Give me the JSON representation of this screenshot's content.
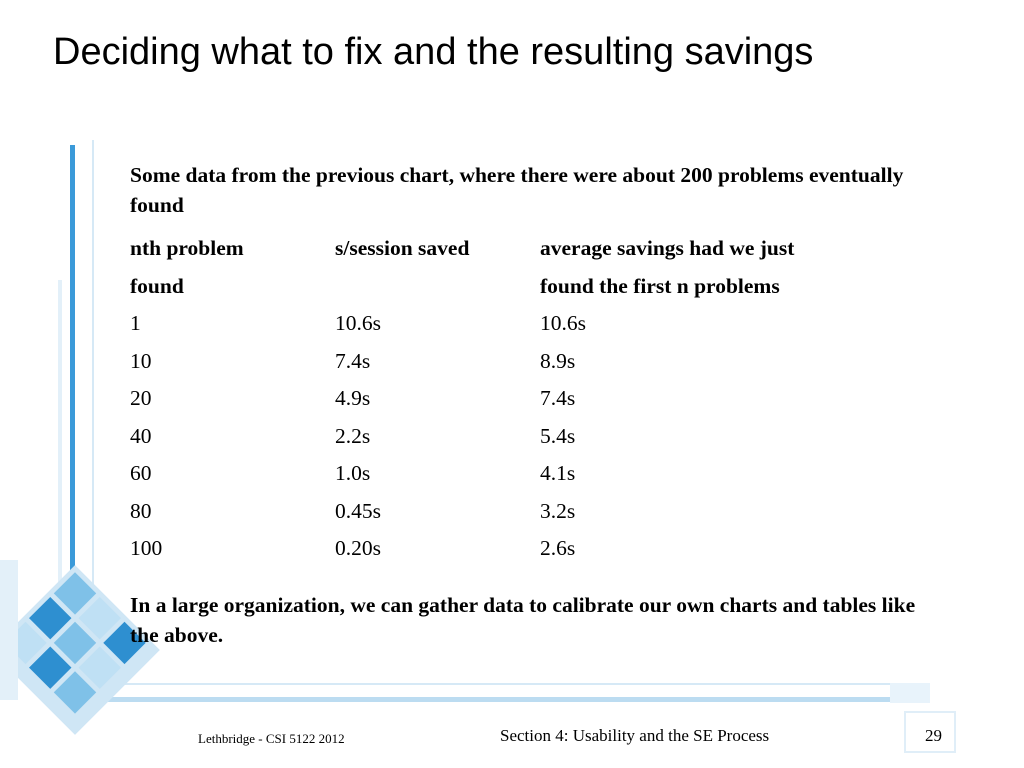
{
  "slide": {
    "title": "Deciding what to fix and the resulting savings",
    "intro": "Some data from the previous chart, where there were about 200 problems eventually found",
    "table": {
      "headers": [
        [
          "nth problem",
          "found"
        ],
        [
          "s/session saved",
          ""
        ],
        [
          "average savings had we just",
          "found the first n problems"
        ]
      ],
      "rows": [
        [
          "1",
          "10.6s",
          "10.6s"
        ],
        [
          "10",
          "7.4s",
          "8.9s"
        ],
        [
          "20",
          "4.9s",
          "7.4s"
        ],
        [
          "40",
          "2.2s",
          "5.4s"
        ],
        [
          "60",
          "1.0s",
          "4.1s"
        ],
        [
          "80",
          "0.45s",
          "3.2s"
        ],
        [
          "100",
          "0.20s",
          "2.6s"
        ]
      ]
    },
    "closing": "In a large organization, we can gather data to calibrate our own charts and tables like the above."
  },
  "footer": {
    "left": "Lethbridge - CSI 5122 2012",
    "center": "Section 4: Usability and the SE Process",
    "page_number": "29"
  },
  "colors": {
    "accent_light": "#cfe6f5",
    "accent_mid": "#7fc1e8",
    "accent_dark": "#2e8fd0"
  }
}
